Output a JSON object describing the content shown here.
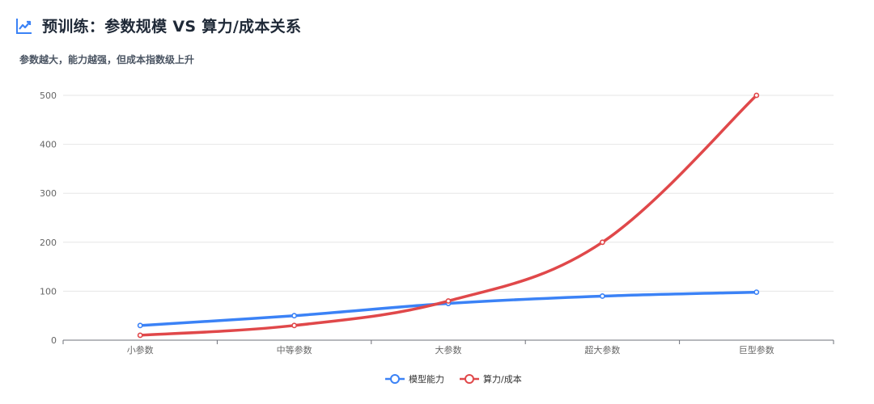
{
  "header": {
    "title": "预训练：参数规模 VS 算力/成本关系",
    "subtitle": "参数越大，能力越强，但成本指数级上升",
    "icon": "line-chart-icon",
    "icon_color": "#3b82f6"
  },
  "chart_data": {
    "type": "line",
    "title": "预训练：参数规模 VS 算力/成本关系",
    "subtitle": "参数越大，能力越强，但成本指数级上升",
    "categories": [
      "小参数",
      "中等参数",
      "大参数",
      "超大参数",
      "巨型参数"
    ],
    "series": [
      {
        "name": "模型能力",
        "values": [
          30,
          50,
          75,
          90,
          98
        ],
        "color": "#3b82f6"
      },
      {
        "name": "算力/成本",
        "values": [
          10,
          30,
          80,
          200,
          500
        ],
        "color": "#e0484a"
      }
    ],
    "ylim": [
      0,
      500
    ],
    "yticks": [
      0,
      100,
      200,
      300,
      400,
      500
    ],
    "grid": true,
    "legend": "bottom-center",
    "smooth": true
  }
}
